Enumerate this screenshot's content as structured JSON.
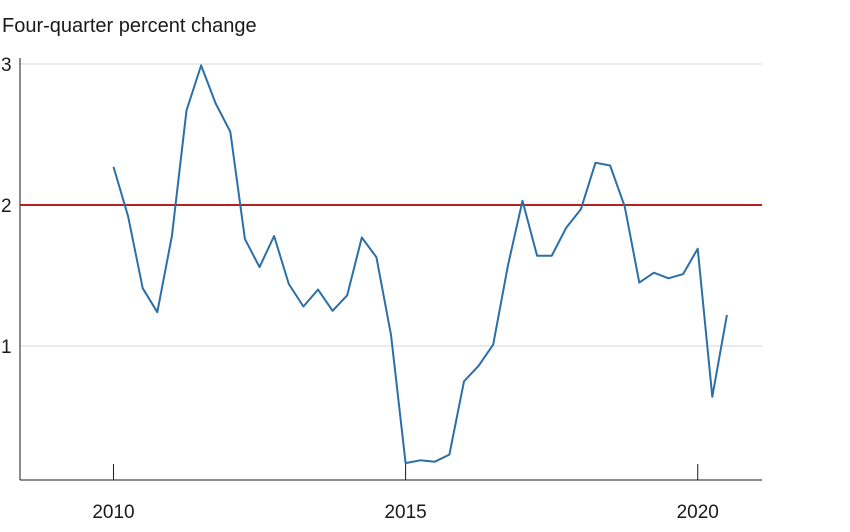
{
  "chart_data": {
    "type": "line",
    "title": "Four-quarter percent change",
    "xlabel": "",
    "ylabel": "",
    "xlim": [
      2008.4,
      2021.1
    ],
    "ylim": [
      0.05,
      3.0
    ],
    "x_ticks": [
      2010,
      2015,
      2020
    ],
    "x_tick_labels": [
      "2010",
      "2015",
      "2020"
    ],
    "y_ticks": [
      1,
      2,
      3
    ],
    "y_tick_labels": [
      "1",
      "2",
      "3"
    ],
    "grid": "horizontal",
    "legend": "none",
    "reference_line": {
      "y": 2,
      "color": "#b22222"
    },
    "series": [
      {
        "color": "#2a6fa8",
        "points": [
          [
            2010.0,
            2.27
          ],
          [
            2010.25,
            1.92
          ],
          [
            2010.5,
            1.41
          ],
          [
            2010.75,
            1.24
          ],
          [
            2011.0,
            1.78
          ],
          [
            2011.25,
            2.67
          ],
          [
            2011.5,
            2.99
          ],
          [
            2011.75,
            2.72
          ],
          [
            2012.0,
            2.52
          ],
          [
            2012.25,
            1.76
          ],
          [
            2012.5,
            1.56
          ],
          [
            2012.75,
            1.78
          ],
          [
            2013.0,
            1.44
          ],
          [
            2013.25,
            1.28
          ],
          [
            2013.5,
            1.4
          ],
          [
            2013.75,
            1.25
          ],
          [
            2014.0,
            1.36
          ],
          [
            2014.25,
            1.77
          ],
          [
            2014.5,
            1.63
          ],
          [
            2014.75,
            1.08
          ],
          [
            2015.0,
            0.17
          ],
          [
            2015.25,
            0.19
          ],
          [
            2015.5,
            0.18
          ],
          [
            2015.75,
            0.23
          ],
          [
            2016.0,
            0.75
          ],
          [
            2016.25,
            0.86
          ],
          [
            2016.5,
            1.01
          ],
          [
            2016.75,
            1.57
          ],
          [
            2017.0,
            2.03
          ],
          [
            2017.25,
            1.64
          ],
          [
            2017.5,
            1.64
          ],
          [
            2017.75,
            1.84
          ],
          [
            2018.0,
            1.97
          ],
          [
            2018.25,
            2.3
          ],
          [
            2018.5,
            2.28
          ],
          [
            2018.75,
            1.99
          ],
          [
            2019.0,
            1.45
          ],
          [
            2019.25,
            1.52
          ],
          [
            2019.5,
            1.48
          ],
          [
            2019.75,
            1.51
          ],
          [
            2020.0,
            1.69
          ],
          [
            2020.25,
            0.64
          ],
          [
            2020.5,
            1.22
          ]
        ]
      }
    ]
  }
}
